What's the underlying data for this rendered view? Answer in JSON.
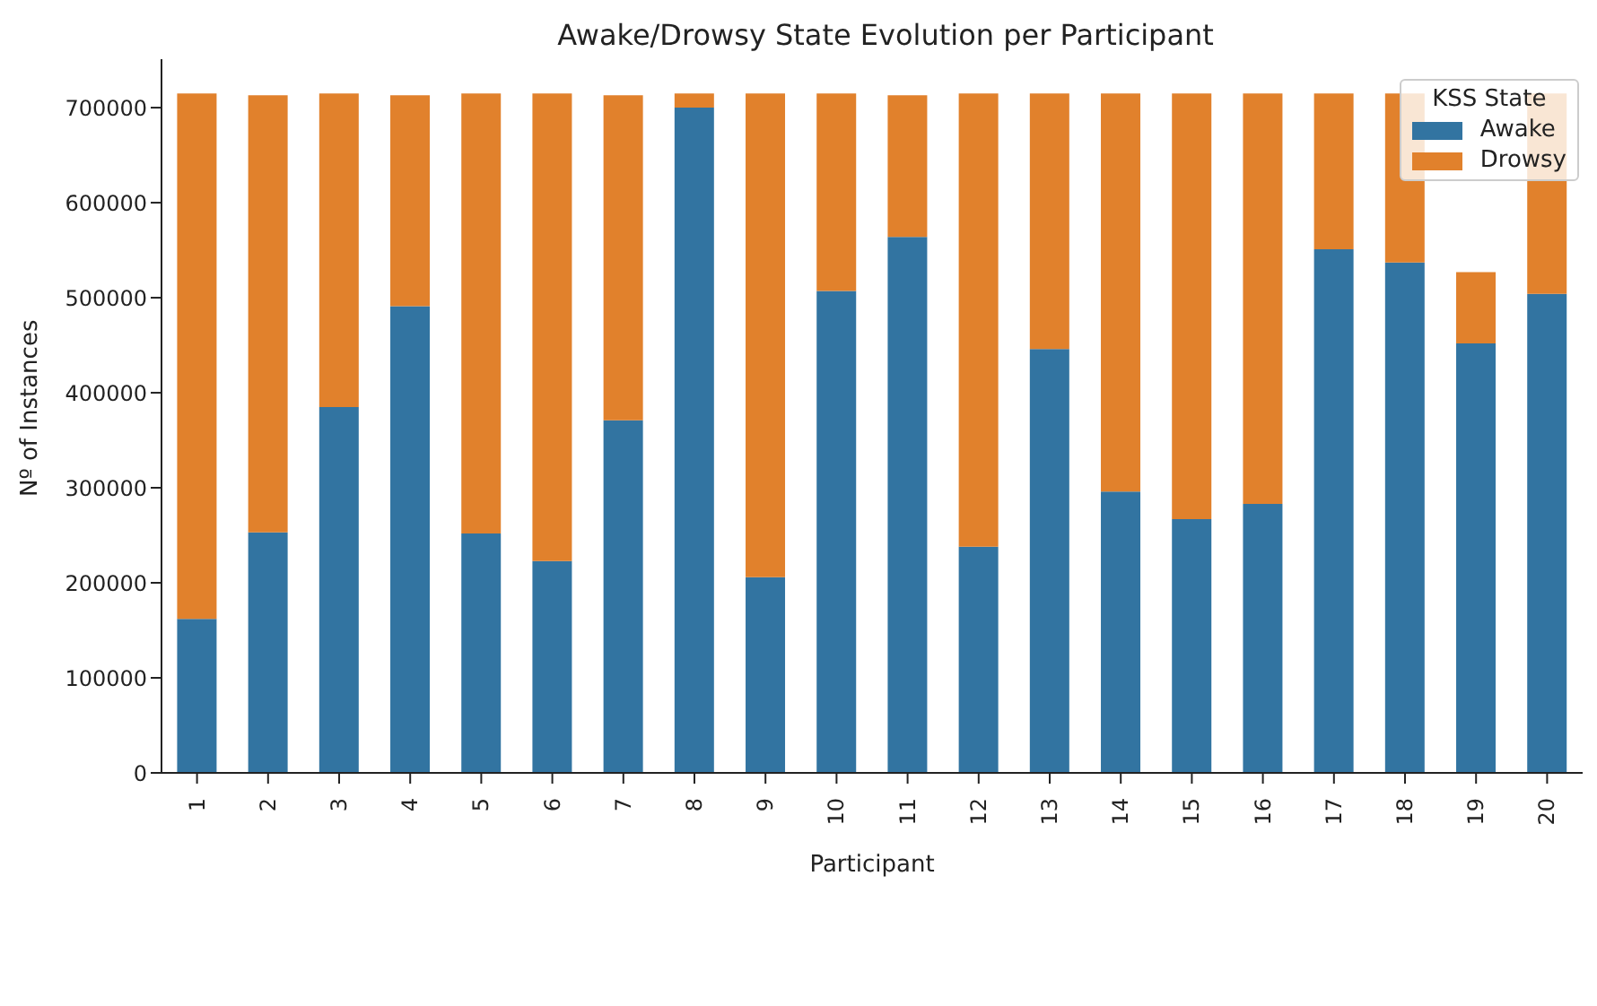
{
  "chart_data": {
    "type": "bar",
    "title": "Awake/Drowsy State Evolution per Participant",
    "xlabel": "Participant",
    "ylabel": "Nº of Instances",
    "legend_title": "KSS State",
    "categories": [
      "1",
      "2",
      "3",
      "4",
      "5",
      "6",
      "7",
      "8",
      "9",
      "10",
      "11",
      "12",
      "13",
      "14",
      "15",
      "16",
      "17",
      "18",
      "19",
      "20"
    ],
    "series": [
      {
        "name": "Awake",
        "color": "#3274a1",
        "values": [
          162000,
          253000,
          385000,
          491000,
          252000,
          223000,
          371000,
          700000,
          206000,
          507000,
          564000,
          238000,
          446000,
          296000,
          267000,
          283000,
          551000,
          537000,
          452000,
          504000
        ]
      },
      {
        "name": "Drowsy",
        "color": "#e1812c",
        "values": [
          553000,
          460000,
          330000,
          222000,
          463000,
          492000,
          342000,
          15000,
          509000,
          208000,
          149000,
          477000,
          269000,
          419000,
          448000,
          432000,
          164000,
          178000,
          75000,
          211000
        ]
      }
    ],
    "stacked": true,
    "ylim": [
      0,
      751000
    ],
    "yticks": [
      0,
      100000,
      200000,
      300000,
      400000,
      500000,
      600000,
      700000
    ],
    "grid": false,
    "legend": "top right"
  }
}
